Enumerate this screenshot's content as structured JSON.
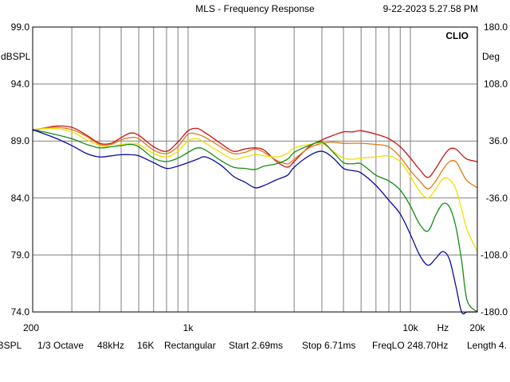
{
  "header": {
    "title": "MLS - Frequency Response",
    "timestamp": "9-22-2023 5.27.58 PM"
  },
  "brand": "CLIO",
  "status_bar": {
    "unit": "dBSPL",
    "smoothing": "1/3 Octave",
    "sample_rate": "48kHz",
    "size": "16K",
    "window": "Rectangular",
    "start": "Start 2.69ms",
    "stop": "Stop 6.71ms",
    "freqlo": "FreqLO 248.70Hz",
    "length": "Length 4."
  },
  "chart_data": {
    "type": "line",
    "title": "MLS - Frequency Response",
    "x_scale": "log",
    "xlim": [
      200,
      20000
    ],
    "x_tick_labels": [
      {
        "value": 200,
        "label": "200"
      },
      {
        "value": 1000,
        "label": "1k"
      },
      {
        "value": 10000,
        "label": "10k"
      },
      {
        "value": 14000,
        "label": "Hz"
      },
      {
        "value": 20000,
        "label": "20k"
      }
    ],
    "ylabel_left": "dBSPL",
    "ylim_left": [
      74.0,
      99.0
    ],
    "y_ticks_left": [
      "99.0",
      "94.0",
      "89.0",
      "84.0",
      "79.0",
      "74.0"
    ],
    "ylabel_right": "Deg",
    "ylim_right": [
      -180.0,
      180.0
    ],
    "y_ticks_right": [
      "180.0",
      "108.0",
      "36.0",
      "-36.0",
      "-108.0",
      "-180.0"
    ],
    "grid": true,
    "colors": {
      "background": "#ffffff",
      "grid": "#808080",
      "red": "#c81414",
      "orange": "#e07818",
      "yellow": "#f0e000",
      "green": "#148c14",
      "blue": "#0a0aa0"
    },
    "x": [
      200,
      250,
      300,
      350,
      400,
      450,
      500,
      550,
      600,
      700,
      800,
      900,
      1000,
      1100,
      1200,
      1400,
      1600,
      1800,
      2000,
      2200,
      2500,
      2800,
      3000,
      3500,
      4000,
      4500,
      5000,
      5500,
      6000,
      7000,
      8000,
      9000,
      10000,
      11000,
      12000,
      13000,
      14000,
      15000,
      16000,
      17000,
      18000,
      20000
    ],
    "series": [
      {
        "color": "red",
        "values": [
          89.9,
          90.3,
          90.2,
          89.5,
          88.8,
          88.8,
          89.3,
          89.7,
          89.5,
          88.5,
          88.1,
          88.9,
          89.9,
          90.1,
          89.7,
          88.8,
          88.1,
          88.3,
          88.4,
          88.2,
          87.2,
          86.7,
          87.2,
          88.5,
          89.1,
          89.5,
          89.8,
          89.8,
          89.9,
          89.6,
          89.2,
          88.5,
          87.5,
          86.5,
          85.8,
          86.6,
          87.6,
          88.3,
          88.3,
          87.8,
          87.4,
          87.2
        ]
      },
      {
        "color": "orange",
        "values": [
          90.0,
          90.2,
          90.0,
          89.4,
          88.7,
          88.7,
          89.1,
          89.3,
          89.2,
          88.2,
          87.9,
          88.5,
          89.6,
          89.6,
          89.3,
          88.5,
          87.9,
          88.0,
          88.3,
          88.0,
          87.3,
          87.0,
          87.4,
          88.4,
          88.8,
          88.9,
          88.8,
          88.8,
          88.8,
          88.7,
          88.5,
          87.6,
          86.4,
          85.5,
          84.8,
          85.5,
          86.5,
          87.2,
          87.2,
          86.3,
          85.5,
          84.9
        ]
      },
      {
        "color": "yellow",
        "values": [
          90.0,
          90.1,
          89.8,
          89.1,
          88.6,
          88.5,
          88.7,
          88.8,
          88.7,
          87.9,
          87.6,
          88.1,
          89.0,
          89.2,
          88.8,
          88.0,
          87.4,
          87.6,
          87.8,
          87.7,
          87.6,
          87.9,
          88.4,
          88.7,
          88.8,
          88.1,
          87.5,
          87.4,
          87.5,
          87.6,
          87.7,
          87.2,
          85.9,
          84.6,
          84.0,
          84.8,
          85.7,
          85.6,
          84.8,
          83.0,
          81.2,
          79.3
        ]
      },
      {
        "color": "green",
        "values": [
          90.0,
          89.6,
          89.2,
          88.7,
          88.4,
          88.5,
          88.6,
          88.7,
          88.5,
          87.5,
          87.2,
          87.5,
          88.0,
          88.4,
          88.2,
          87.3,
          86.7,
          86.6,
          86.5,
          86.8,
          87.0,
          87.4,
          88.0,
          88.6,
          88.9,
          88.0,
          87.1,
          87.0,
          87.0,
          86.0,
          85.5,
          84.7,
          83.3,
          81.7,
          81.1,
          82.5,
          83.5,
          83.2,
          81.5,
          78.5,
          75.0,
          74.0
        ]
      },
      {
        "color": "blue",
        "values": [
          90.0,
          89.3,
          88.6,
          87.9,
          87.6,
          87.7,
          87.8,
          87.8,
          87.7,
          87.1,
          86.6,
          86.8,
          87.1,
          87.4,
          87.6,
          86.9,
          85.9,
          85.4,
          84.9,
          85.1,
          85.6,
          86.0,
          86.7,
          87.7,
          88.1,
          87.5,
          86.6,
          86.4,
          86.2,
          85.1,
          83.8,
          82.6,
          80.8,
          79.0,
          78.1,
          78.7,
          79.3,
          78.6,
          76.3,
          74.0,
          74.0,
          74.0
        ]
      }
    ]
  }
}
